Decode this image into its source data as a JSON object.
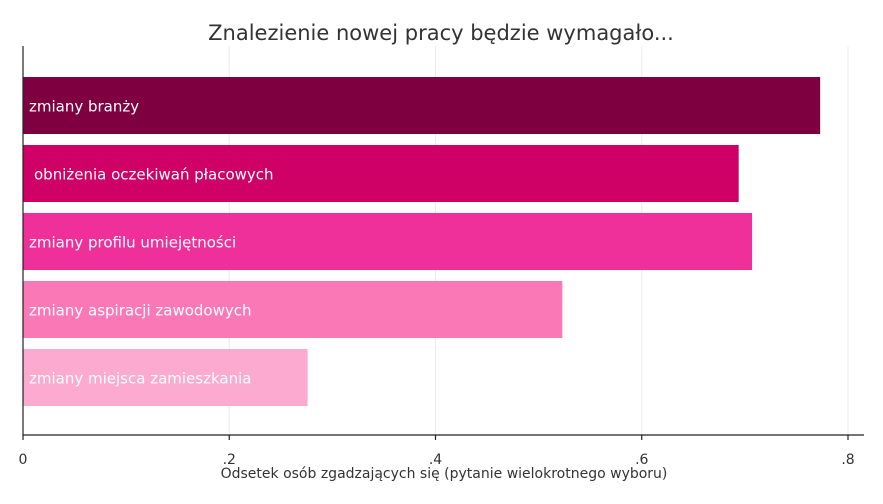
{
  "chart_data": {
    "type": "bar",
    "orientation": "horizontal",
    "title": "Znalezienie nowej pracy będzie wymagało...",
    "xlabel": "Odsetek osób zgadzających się (pytanie wielokrotnego wyboru)",
    "ylabel": "",
    "xlim": [
      0,
      0.8
    ],
    "grid": true,
    "categories": [
      "zmiany branży",
      "obniżenia oczekiwań płacowych",
      "zmiany profilu umiejętności",
      "zmiany aspiracji zawodowych",
      "zmiany miejsca zamieszkania"
    ],
    "values": [
      0.773,
      0.694,
      0.707,
      0.523,
      0.276
    ],
    "colors": [
      "#7f0040",
      "#cf0066",
      "#f0309a",
      "#fb78b6",
      "#fcaad0"
    ],
    "xticks": [
      0,
      0.2,
      0.4,
      0.6,
      0.8
    ],
    "xtick_labels": [
      "0",
      ".2",
      ".4",
      ".6",
      ".8"
    ]
  }
}
